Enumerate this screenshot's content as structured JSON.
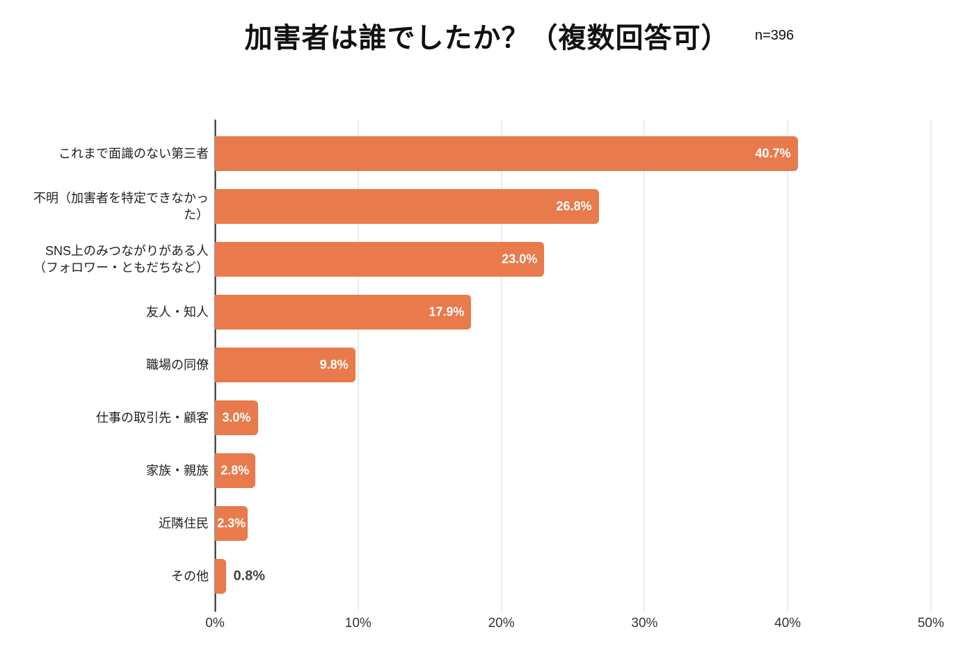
{
  "header": {
    "title": "加害者は誰でしたか？（複数回答可）",
    "sample_size": "n=396"
  },
  "colors": {
    "bar": "#E87A4C",
    "grid": "#d9d9d9",
    "zero_axis": "#212121",
    "value_label_in_bar": "#ffffff",
    "value_label_outside": "#434343",
    "title_text": "#111111",
    "tick_text": "#333333"
  },
  "chart_data": {
    "type": "bar",
    "orientation": "horizontal",
    "title": "加害者は誰でしたか？（複数回答可）",
    "sample_note": "n=396",
    "categories": [
      "これまで面識のない第三者",
      "不明（加害者を特定できなかっ\nた）",
      "SNS上のみつながりがある人\n（フォロワー・ともだちなど）",
      "友人・知人",
      "職場の同僚",
      "仕事の取引先・顧客",
      "家族・親族",
      "近隣住民",
      "その他"
    ],
    "values": [
      40.7,
      26.8,
      23.0,
      17.9,
      9.8,
      3.0,
      2.8,
      2.3,
      0.8
    ],
    "value_labels": [
      "40.7%",
      "26.8%",
      "23.0%",
      "17.9%",
      "9.8%",
      "3.0%",
      "2.8%",
      "2.3%",
      "0.8%"
    ],
    "xlabel": "",
    "ylabel": "",
    "xlim": [
      0,
      50
    ],
    "x_ticks": [
      {
        "label": "0%",
        "value": 0
      },
      {
        "label": "10%",
        "value": 10
      },
      {
        "label": "20%",
        "value": 20
      },
      {
        "label": "30%",
        "value": 30
      },
      {
        "label": "40%",
        "value": 40
      },
      {
        "label": "50%",
        "value": 50
      }
    ],
    "grid": true,
    "legend": false,
    "bar_color": "#E87A4C"
  }
}
